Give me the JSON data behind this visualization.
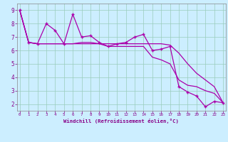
{
  "xlabel": "Windchill (Refroidissement éolien,°C)",
  "bg_color": "#cceeff",
  "line_color": "#aa00aa",
  "grid_color": "#99ccbb",
  "x_ticks": [
    0,
    1,
    2,
    3,
    4,
    5,
    6,
    7,
    8,
    9,
    10,
    11,
    12,
    13,
    14,
    15,
    16,
    17,
    18,
    19,
    20,
    21,
    22,
    23
  ],
  "y_ticks": [
    2,
    3,
    4,
    5,
    6,
    7,
    8,
    9
  ],
  "xlim": [
    -0.3,
    23.3
  ],
  "ylim": [
    1.5,
    9.5
  ],
  "series1_x": [
    0,
    1,
    2,
    3,
    4,
    5,
    6,
    7,
    8,
    9,
    10,
    11,
    12,
    13,
    14,
    15,
    16,
    17,
    18,
    19,
    20,
    21,
    22,
    23
  ],
  "series1_y": [
    9.0,
    6.6,
    6.5,
    8.0,
    7.5,
    6.5,
    8.7,
    7.0,
    7.1,
    6.6,
    6.3,
    6.5,
    6.6,
    7.0,
    7.2,
    6.0,
    6.1,
    6.3,
    3.3,
    2.9,
    2.6,
    1.8,
    2.2,
    2.1
  ],
  "series2_x": [
    0,
    1,
    2,
    3,
    4,
    5,
    6,
    7,
    8,
    9,
    10,
    11,
    12,
    13,
    14,
    15,
    16,
    17,
    18,
    19,
    20,
    21,
    22,
    23
  ],
  "series2_y": [
    9.0,
    6.6,
    6.5,
    6.5,
    6.5,
    6.5,
    6.5,
    6.6,
    6.6,
    6.5,
    6.5,
    6.5,
    6.5,
    6.5,
    6.5,
    6.5,
    6.5,
    6.4,
    5.8,
    5.0,
    4.3,
    3.8,
    3.3,
    2.1
  ],
  "series3_x": [
    0,
    1,
    2,
    3,
    4,
    5,
    6,
    7,
    8,
    9,
    10,
    11,
    12,
    13,
    14,
    15,
    16,
    17,
    18,
    19,
    20,
    21,
    22,
    23
  ],
  "series3_y": [
    9.0,
    6.6,
    6.5,
    6.5,
    6.5,
    6.5,
    6.5,
    6.5,
    6.5,
    6.5,
    6.3,
    6.3,
    6.3,
    6.3,
    6.3,
    5.5,
    5.3,
    5.0,
    3.8,
    3.4,
    3.3,
    3.0,
    2.8,
    2.1
  ]
}
